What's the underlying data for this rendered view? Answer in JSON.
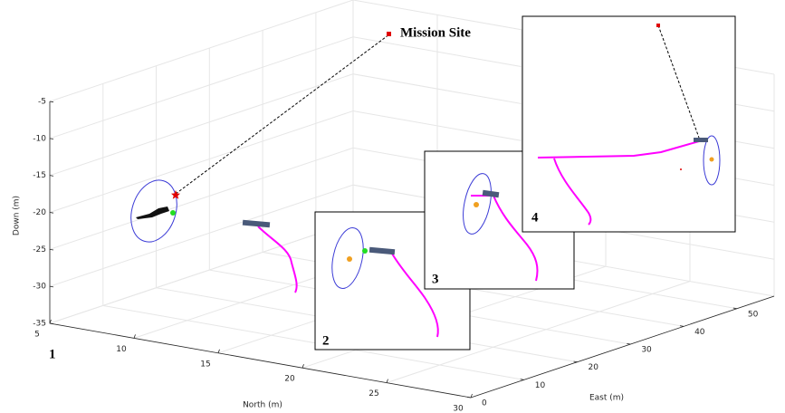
{
  "chart_data": {
    "type": "plot3d",
    "annotation": "Mission Site",
    "xlabel": "North (m)",
    "ylabel": "East (m)",
    "zlabel": "Down (m)",
    "xlim": [
      5,
      30
    ],
    "xticks": [
      5,
      10,
      15,
      20,
      25,
      30
    ],
    "ylim": [
      0,
      57
    ],
    "yticks": [
      0,
      10,
      20,
      30,
      40,
      50
    ],
    "zlim": [
      -35,
      -5
    ],
    "zticks": [
      -35,
      -30,
      -25,
      -20,
      -15,
      -10,
      -5
    ],
    "grid": true,
    "panel_labels": [
      "1",
      "2",
      "3",
      "4"
    ]
  }
}
